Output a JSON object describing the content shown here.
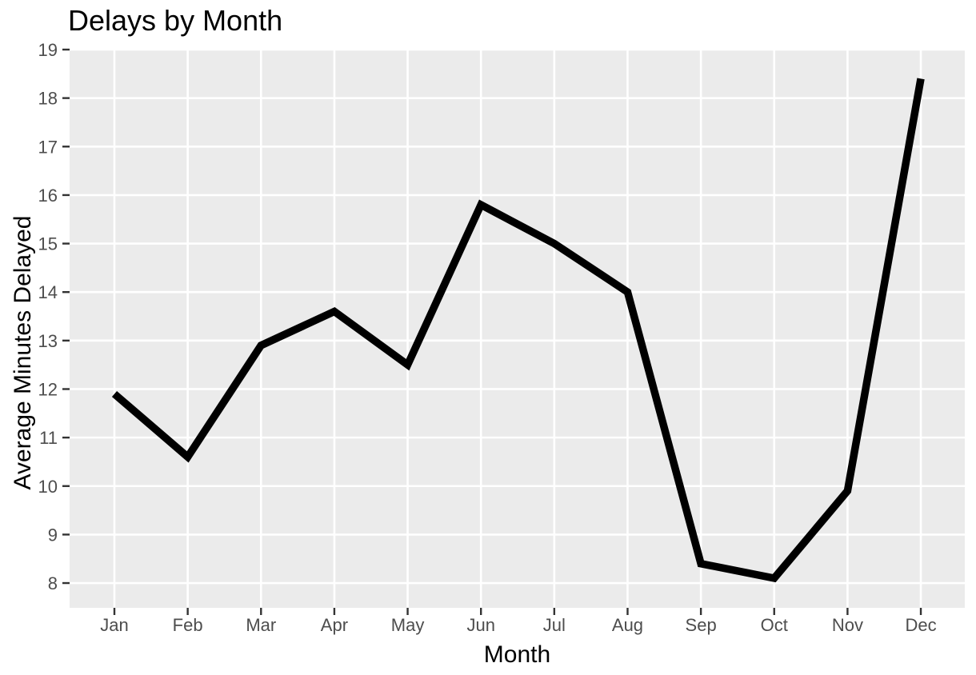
{
  "chart_data": {
    "type": "line",
    "title": "Delays by Month",
    "xlabel": "Month",
    "ylabel": "Average Minutes Delayed",
    "categories": [
      "Jan",
      "Feb",
      "Mar",
      "Apr",
      "May",
      "Jun",
      "Jul",
      "Aug",
      "Sep",
      "Oct",
      "Nov",
      "Dec"
    ],
    "series": [
      {
        "name": "average_minutes_delayed",
        "values": [
          11.9,
          10.6,
          12.9,
          13.6,
          12.5,
          15.8,
          15.0,
          14.0,
          8.4,
          8.1,
          9.9,
          18.4
        ]
      }
    ],
    "y_ticks": [
      8,
      9,
      10,
      11,
      12,
      13,
      14,
      15,
      16,
      17,
      18,
      19
    ],
    "ylim": [
      7.5,
      19
    ],
    "grid": "major-only",
    "legend_position": "none",
    "colors": {
      "line": "#000000",
      "panel_background": "#EBEBEB",
      "gridline": "#FFFFFF",
      "tick_label": "#4D4D4D",
      "tick_mark": "#333333",
      "axis_title": "#000000",
      "title": "#000000",
      "page_background": "#FFFFFF"
    }
  }
}
